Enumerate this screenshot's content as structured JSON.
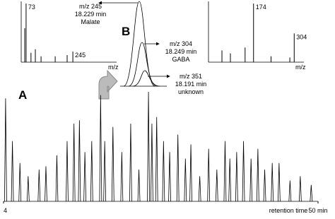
{
  "panel_a": {
    "label": "A",
    "chromatogram": {
      "xlim": [
        4,
        50
      ],
      "xticks": [
        4,
        {
          "value": 50,
          "label": "50 min"
        }
      ],
      "x_label": "retention time",
      "ylim": [
        0,
        100
      ],
      "peaks": {
        "time": [
          4.3,
          5.3,
          6.4,
          7.6,
          9.2,
          10.2,
          11.8,
          13.3,
          14.3,
          15.1,
          15.9,
          16.9,
          18.2,
          18.8,
          20.0,
          21.3,
          22.6,
          23.8,
          25.2,
          25.7,
          26.4,
          27.4,
          28.3,
          29.5,
          30.6,
          31.4,
          32.7,
          34.0,
          35.2,
          36.4,
          37.1,
          38.1,
          39.1,
          40.2,
          41.2,
          42.2,
          43.3,
          44.3,
          45.9,
          47.4,
          49.0
        ],
        "height": [
          94,
          55,
          35,
          23,
          29,
          32,
          42,
          55,
          71,
          74,
          45,
          55,
          97,
          55,
          68,
          45,
          71,
          29,
          100,
          71,
          77,
          55,
          45,
          61,
          39,
          52,
          23,
          48,
          29,
          55,
          39,
          45,
          55,
          39,
          48,
          29,
          35,
          35,
          19,
          23,
          15
        ]
      }
    }
  },
  "panel_b": {
    "label": "B",
    "eics": [
      {
        "mz": "m/z 245",
        "time": "18.229 min",
        "compound": "Malate"
      },
      {
        "mz": "m/z 304",
        "time": "18.249 min",
        "compound": "GABA"
      },
      {
        "mz": "m/z 351",
        "time": "18.191 min",
        "compound": "unknown"
      }
    ]
  },
  "spectra": [
    {
      "x_label": "m/z",
      "xlim": [
        55,
        406
      ],
      "ylim": [
        0,
        100
      ],
      "labeled_peaks": [
        73,
        245
      ],
      "peaks": {
        "mz": [
          68,
          73,
          91,
          107,
          128,
          180,
          224,
          245
        ],
        "intensity": [
          58,
          100,
          16,
          22,
          10,
          10,
          12,
          18
        ]
      }
    },
    {
      "x_label": "m/z",
      "xlim": [
        30,
        335
      ],
      "ylim": [
        0,
        100
      ],
      "labeled_peaks": [
        174,
        304
      ],
      "peaks": {
        "mz": [
          73,
          100,
          147,
          174,
          230,
          290,
          304
        ],
        "intensity": [
          20,
          15,
          25,
          100,
          10,
          8,
          49
        ]
      }
    }
  ]
}
